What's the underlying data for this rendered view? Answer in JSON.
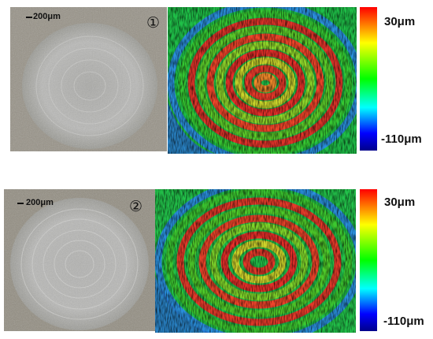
{
  "panels": [
    {
      "sample_number": "①",
      "scale_bar_label": "200μm",
      "colorbar_max_label": "30μm",
      "colorbar_min_label": "-110μm"
    },
    {
      "sample_number": "②",
      "scale_bar_label": "200μm",
      "colorbar_max_label": "30μm",
      "colorbar_min_label": "-110μm"
    }
  ],
  "colorbar_colors": [
    "#ff0000",
    "#ffff00",
    "#00ff00",
    "#00ffff",
    "#0000ff",
    "#00008b"
  ]
}
